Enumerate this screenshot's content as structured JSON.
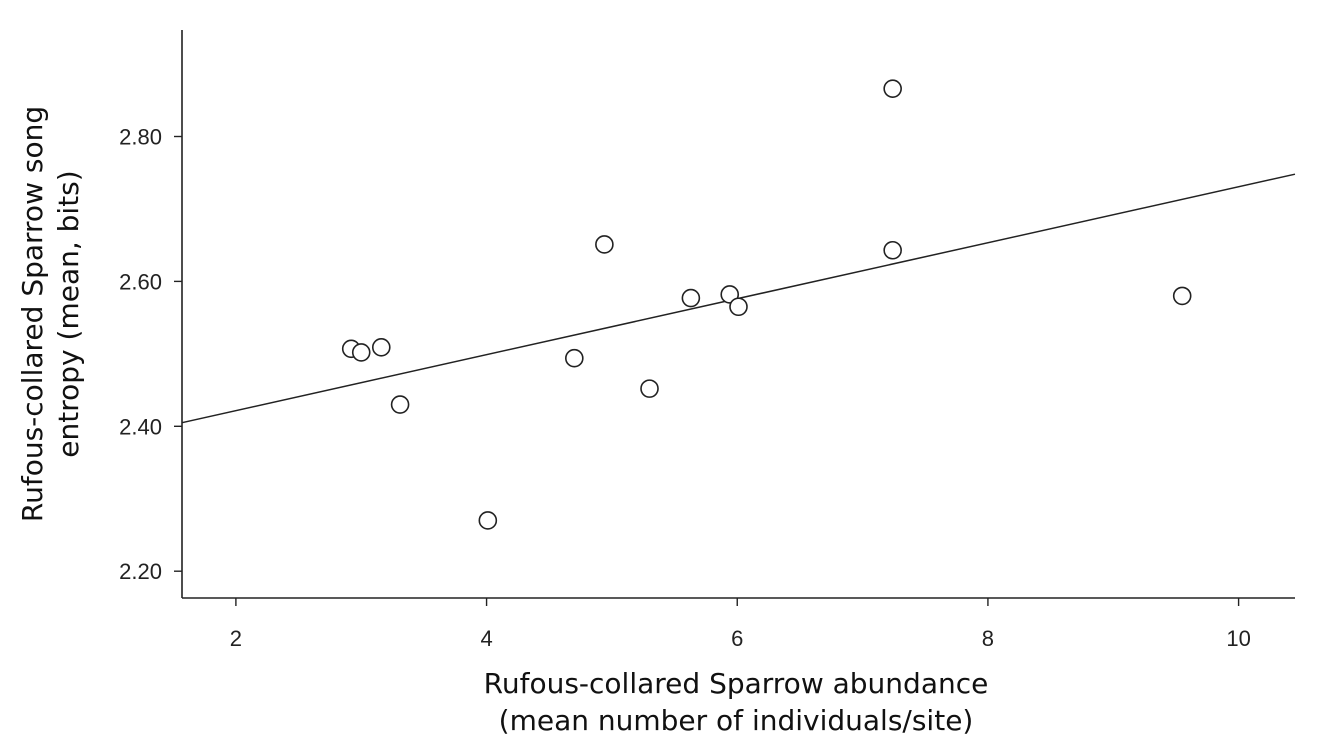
{
  "chart_data": {
    "type": "scatter",
    "xlabel": [
      "Rufous-collared Sparrow abundance",
      "(mean number of individuals/site)"
    ],
    "ylabel": [
      "Rufous-collared Sparrow song",
      "entropy (mean, bits)"
    ],
    "xlim": [
      1.57,
      10.45
    ],
    "ylim": [
      2.163,
      2.947
    ],
    "x_ticks": [
      2,
      4,
      6,
      8,
      10
    ],
    "x_tick_labels": [
      "2",
      "4",
      "6",
      "8",
      "10"
    ],
    "y_ticks": [
      2.2,
      2.4,
      2.6,
      2.8
    ],
    "y_tick_labels": [
      "2.20",
      "2.40",
      "2.60",
      "2.80"
    ],
    "grid": false,
    "points": [
      {
        "x": 2.92,
        "y": 2.507
      },
      {
        "x": 3.0,
        "y": 2.502
      },
      {
        "x": 3.16,
        "y": 2.509
      },
      {
        "x": 3.31,
        "y": 2.43
      },
      {
        "x": 4.01,
        "y": 2.27
      },
      {
        "x": 4.7,
        "y": 2.494
      },
      {
        "x": 4.94,
        "y": 2.651
      },
      {
        "x": 5.3,
        "y": 2.452
      },
      {
        "x": 5.63,
        "y": 2.577
      },
      {
        "x": 5.94,
        "y": 2.582
      },
      {
        "x": 6.01,
        "y": 2.565
      },
      {
        "x": 7.24,
        "y": 2.866
      },
      {
        "x": 7.24,
        "y": 2.643
      },
      {
        "x": 9.55,
        "y": 2.58
      }
    ],
    "fit_line": {
      "x": [
        1.57,
        10.45
      ],
      "y": [
        2.405,
        2.748
      ]
    }
  }
}
